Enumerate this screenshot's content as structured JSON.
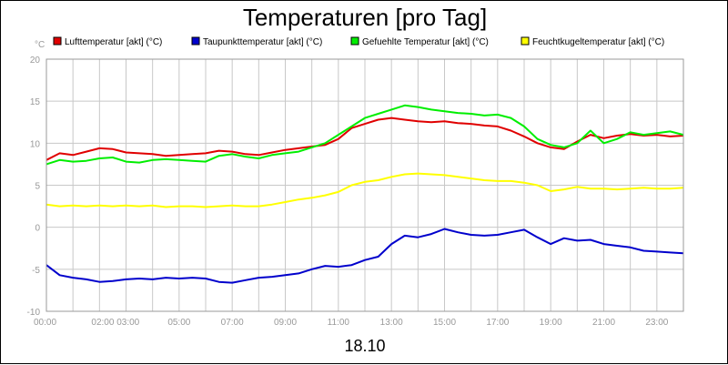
{
  "chart_data": {
    "type": "line",
    "title": "Temperaturen [pro Tag]",
    "date_label": "18.10",
    "yunit": "°C",
    "ylim": [
      -10,
      20
    ],
    "xlim": [
      0,
      24
    ],
    "y_ticks": [
      -10,
      -5,
      0,
      5,
      10,
      15,
      20
    ],
    "x_ticks": [
      {
        "h": 0,
        "label": "00:00"
      },
      {
        "h": 2.6,
        "label": "02:00 03:00"
      },
      {
        "h": 5,
        "label": "05:00"
      },
      {
        "h": 7,
        "label": "07:00"
      },
      {
        "h": 9,
        "label": "09:00"
      },
      {
        "h": 11,
        "label": "11:00"
      },
      {
        "h": 13,
        "label": "13:00"
      },
      {
        "h": 15,
        "label": "15:00"
      },
      {
        "h": 17,
        "label": "17:00"
      },
      {
        "h": 19,
        "label": "19:00"
      },
      {
        "h": 21,
        "label": "21:00"
      },
      {
        "h": 23,
        "label": "23:00"
      }
    ],
    "grid": true,
    "legend_position": "top",
    "series": [
      {
        "name": "Lufttemperatur [akt] (°C)",
        "color": "#e00000",
        "x": [
          0,
          0.5,
          1,
          1.5,
          2,
          2.5,
          3,
          3.5,
          4,
          4.5,
          5,
          5.5,
          6,
          6.5,
          7,
          7.5,
          8,
          8.5,
          9,
          9.5,
          10,
          10.5,
          11,
          11.5,
          12,
          12.5,
          13,
          13.5,
          14,
          14.5,
          15,
          15.5,
          16,
          16.5,
          17,
          17.5,
          18,
          18.5,
          19,
          19.5,
          20,
          20.5,
          21,
          21.5,
          22,
          22.5,
          23,
          23.5,
          24
        ],
        "values": [
          8.0,
          8.8,
          8.6,
          9.0,
          9.4,
          9.3,
          8.9,
          8.8,
          8.7,
          8.5,
          8.6,
          8.7,
          8.8,
          9.1,
          9.0,
          8.7,
          8.6,
          8.9,
          9.2,
          9.4,
          9.6,
          9.8,
          10.5,
          11.8,
          12.3,
          12.8,
          13.0,
          12.8,
          12.6,
          12.5,
          12.6,
          12.4,
          12.3,
          12.1,
          12.0,
          11.5,
          10.8,
          10.0,
          9.5,
          9.3,
          10.2,
          11.0,
          10.6,
          10.9,
          11.1,
          10.9,
          11.0,
          10.8,
          10.9
        ]
      },
      {
        "name": "Taupunkttemperatur [akt] (°C)",
        "color": "#0000cc",
        "x": [
          0,
          0.5,
          1,
          1.5,
          2,
          2.5,
          3,
          3.5,
          4,
          4.5,
          5,
          5.5,
          6,
          6.5,
          7,
          7.5,
          8,
          8.5,
          9,
          9.5,
          10,
          10.5,
          11,
          11.5,
          12,
          12.5,
          13,
          13.5,
          14,
          14.5,
          15,
          15.5,
          16,
          16.5,
          17,
          17.5,
          18,
          18.5,
          19,
          19.5,
          20,
          20.5,
          21,
          21.5,
          22,
          22.5,
          23,
          23.5,
          24
        ],
        "values": [
          -4.5,
          -5.7,
          -6.0,
          -6.2,
          -6.5,
          -6.4,
          -6.2,
          -6.1,
          -6.2,
          -6.0,
          -6.1,
          -6.0,
          -6.1,
          -6.5,
          -6.6,
          -6.3,
          -6.0,
          -5.9,
          -5.7,
          -5.5,
          -5.0,
          -4.6,
          -4.7,
          -4.5,
          -3.9,
          -3.5,
          -2.0,
          -1.0,
          -1.2,
          -0.8,
          -0.2,
          -0.6,
          -0.9,
          -1.0,
          -0.9,
          -0.6,
          -0.3,
          -1.2,
          -2.0,
          -1.3,
          -1.6,
          -1.5,
          -2.0,
          -2.2,
          -2.4,
          -2.8,
          -2.9,
          -3.0,
          -3.1
        ]
      },
      {
        "name": "Gefuehlte Temperatur [akt] (°C)",
        "color": "#00ee00",
        "x": [
          0,
          0.5,
          1,
          1.5,
          2,
          2.5,
          3,
          3.5,
          4,
          4.5,
          5,
          5.5,
          6,
          6.5,
          7,
          7.5,
          8,
          8.5,
          9,
          9.5,
          10,
          10.5,
          11,
          11.5,
          12,
          12.5,
          13,
          13.5,
          14,
          14.5,
          15,
          15.5,
          16,
          16.5,
          17,
          17.5,
          18,
          18.5,
          19,
          19.5,
          20,
          20.5,
          21,
          21.5,
          22,
          22.5,
          23,
          23.5,
          24
        ],
        "values": [
          7.5,
          8.0,
          7.8,
          7.9,
          8.2,
          8.3,
          7.8,
          7.7,
          8.0,
          8.1,
          8.0,
          7.9,
          7.8,
          8.5,
          8.7,
          8.4,
          8.2,
          8.6,
          8.8,
          9.0,
          9.5,
          10.0,
          11.0,
          12.0,
          13.0,
          13.5,
          14.0,
          14.5,
          14.3,
          14.0,
          13.8,
          13.6,
          13.5,
          13.3,
          13.4,
          13.0,
          12.0,
          10.5,
          9.8,
          9.5,
          10.0,
          11.5,
          10.0,
          10.5,
          11.3,
          11.0,
          11.2,
          11.4,
          11.0
        ]
      },
      {
        "name": "Feuchtkugeltemperatur [akt] (°C)",
        "color": "#ffff00",
        "x": [
          0,
          0.5,
          1,
          1.5,
          2,
          2.5,
          3,
          3.5,
          4,
          4.5,
          5,
          5.5,
          6,
          6.5,
          7,
          7.5,
          8,
          8.5,
          9,
          9.5,
          10,
          10.5,
          11,
          11.5,
          12,
          12.5,
          13,
          13.5,
          14,
          14.5,
          15,
          15.5,
          16,
          16.5,
          17,
          17.5,
          18,
          18.5,
          19,
          19.5,
          20,
          20.5,
          21,
          21.5,
          22,
          22.5,
          23,
          23.5,
          24
        ],
        "values": [
          2.7,
          2.5,
          2.6,
          2.5,
          2.6,
          2.5,
          2.6,
          2.5,
          2.6,
          2.4,
          2.5,
          2.5,
          2.4,
          2.5,
          2.6,
          2.5,
          2.5,
          2.7,
          3.0,
          3.3,
          3.5,
          3.8,
          4.2,
          5.0,
          5.4,
          5.6,
          6.0,
          6.3,
          6.4,
          6.3,
          6.2,
          6.0,
          5.8,
          5.6,
          5.5,
          5.5,
          5.3,
          5.0,
          4.3,
          4.5,
          4.8,
          4.6,
          4.6,
          4.5,
          4.6,
          4.7,
          4.6,
          4.6,
          4.7
        ]
      }
    ]
  }
}
